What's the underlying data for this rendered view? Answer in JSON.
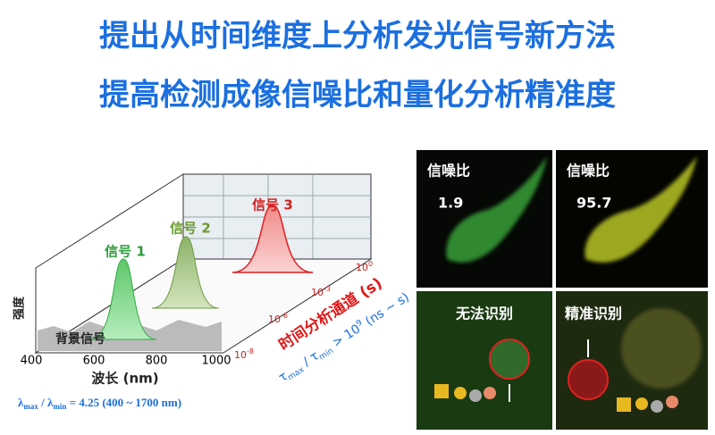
{
  "header": {
    "lines": [
      "提出从时间维度上分析发光信号新方法",
      "提高检测成像信噪比和量化分析精准度"
    ]
  },
  "diagram": {
    "peaks": [
      "信号 1",
      "信号 2",
      "信号 3"
    ],
    "background": "背景信号",
    "y_label": "强度",
    "x_ticks": [
      "400",
      "600",
      "800",
      "1000"
    ],
    "x_label": "波长 (nm)",
    "depth_ticks": [
      {
        "base": "10",
        "exp": "-8"
      },
      {
        "base": "10",
        "exp": "-6"
      },
      {
        "base": "10",
        "exp": "-3"
      },
      {
        "base": "10",
        "exp": "0"
      }
    ],
    "depth_label": "时间分析通道 (s)",
    "tau_ratio": [
      "τ",
      "max",
      " / τ",
      "min",
      " > 10",
      "9",
      " (ns ~ s)"
    ],
    "lambda_ratio": [
      "λ",
      "max",
      " / λ",
      "min",
      " = 4.25 (400 ~ 1700 nm)"
    ]
  },
  "panels": [
    {
      "label": "信噪比",
      "value": "1.9"
    },
    {
      "label": "信噪比",
      "value": "95.7"
    },
    {
      "label": "无法识别"
    },
    {
      "label": "精准识别"
    }
  ]
}
